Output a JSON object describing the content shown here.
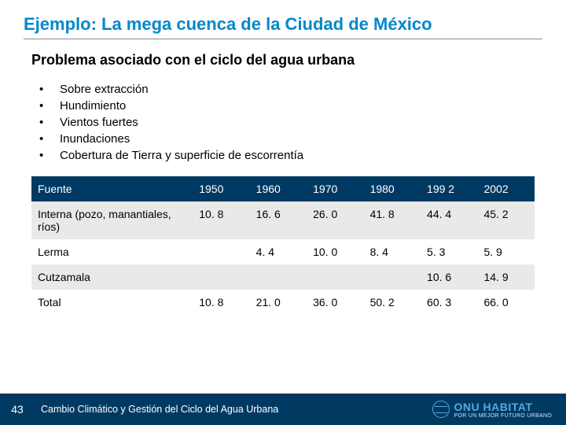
{
  "title": "Ejemplo: La mega cuenca de la Ciudad de México",
  "subtitle": "Problema asociado con el ciclo del agua urbana",
  "bullets": [
    "Sobre extracción",
    "Hundimiento",
    "Vientos fuertes",
    "Inundaciones",
    "Cobertura de Tierra y superficie de escorrentía"
  ],
  "table": {
    "header_bg": "#003a63",
    "header_fg": "#ffffff",
    "row_bg_even": "#e9e9e8",
    "row_bg_odd": "#ffffff",
    "columns": [
      "Fuente",
      "1950",
      "1960",
      "1970",
      "1980",
      "199 2",
      "2002"
    ],
    "rows": [
      {
        "label": "Interna (pozo, manantiales, ríos)",
        "cells": [
          "10. 8",
          "16. 6",
          "26. 0",
          "41. 8",
          "44. 4",
          "45. 2"
        ]
      },
      {
        "label": "Lerma",
        "cells": [
          "",
          "4. 4",
          "10. 0",
          "8. 4",
          "5. 3",
          "5. 9"
        ]
      },
      {
        "label": "Cutzamala",
        "cells": [
          "",
          "",
          "",
          "",
          "10. 6",
          "14. 9"
        ]
      },
      {
        "label": "Total",
        "cells": [
          "10. 8",
          "21. 0",
          "36. 0",
          "50. 2",
          "60. 3",
          "66. 0"
        ]
      }
    ]
  },
  "footer": {
    "page": "43",
    "text": "Cambio Climático y Gestión del Ciclo del Agua Urbana",
    "logo_main": "ONU HABITAT",
    "logo_sub": "POR UN MEJOR FUTURO URBANO"
  },
  "colors": {
    "title": "#0088cc",
    "footer_bg": "#003a63"
  }
}
